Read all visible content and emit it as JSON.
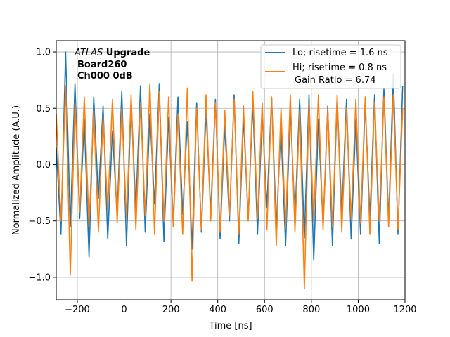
{
  "chart_data": {
    "type": "line",
    "title": "",
    "xlabel": "Time [ns]",
    "ylabel": "Normalized Amplitude (A.U.)",
    "xlim": [
      -290,
      1200
    ],
    "ylim": [
      -1.2,
      1.1
    ],
    "xticks": [
      -200,
      0,
      200,
      400,
      600,
      800,
      1000,
      1200
    ],
    "yticks": [
      -1.0,
      -0.5,
      0.0,
      0.5,
      1.0
    ],
    "xtick_labels": [
      "−200",
      "0",
      "200",
      "400",
      "600",
      "800",
      "1000",
      "1200"
    ],
    "ytick_labels": [
      "−1.0",
      "−0.5",
      "0.0",
      "0.5",
      "1.0"
    ],
    "grid": true,
    "legend_position": "top-right",
    "annotation": {
      "italic": "ATLAS",
      "bold_suffix": " Upgrade",
      "line2": "Board260",
      "line3": "Ch000 0dB"
    },
    "series": [
      {
        "name": "Lo; risetime = 1.6 ns",
        "color": "#1f77b4",
        "x": [
          -290,
          -270,
          -250,
          -230,
          -210,
          -190,
          -170,
          -150,
          -130,
          -110,
          -90,
          -70,
          -50,
          -30,
          -10,
          10,
          30,
          50,
          70,
          90,
          110,
          130,
          150,
          170,
          190,
          210,
          230,
          250,
          270,
          290,
          310,
          330,
          350,
          370,
          390,
          410,
          430,
          450,
          470,
          490,
          510,
          530,
          550,
          570,
          590,
          610,
          630,
          650,
          670,
          690,
          710,
          730,
          750,
          770,
          790,
          810,
          830,
          850,
          870,
          890,
          910,
          930,
          950,
          970,
          990,
          1010,
          1030,
          1050,
          1070,
          1090,
          1110,
          1130,
          1150,
          1170,
          1190
        ],
        "y": [
          0.15,
          -0.62,
          1.0,
          -0.55,
          0.72,
          -0.48,
          0.4,
          -0.82,
          0.6,
          -0.3,
          0.52,
          -0.66,
          0.3,
          -0.45,
          0.65,
          -0.72,
          0.58,
          -0.4,
          0.7,
          -0.6,
          0.45,
          -0.35,
          0.72,
          -0.68,
          0.42,
          -0.52,
          0.6,
          -0.44,
          0.38,
          -0.75,
          0.55,
          -0.6,
          0.48,
          -0.42,
          0.58,
          -0.66,
          0.35,
          -0.5,
          0.62,
          -0.7,
          0.42,
          -0.48,
          0.55,
          -0.62,
          0.45,
          -0.38,
          0.6,
          -0.55,
          0.32,
          -0.72,
          0.5,
          -0.48,
          0.58,
          -0.65,
          0.62,
          -0.85,
          0.4,
          -0.55,
          0.52,
          -0.72,
          0.6,
          -0.45,
          0.58,
          -0.66,
          0.4,
          -0.62,
          0.55,
          -0.48,
          0.62,
          -0.7,
          0.68,
          -0.5,
          0.8,
          -0.62,
          0.7
        ]
      },
      {
        "name": "Hi; risetime = 0.8 ns",
        "color": "#ff7f0e",
        "x": [
          -290,
          -270,
          -250,
          -230,
          -210,
          -190,
          -170,
          -150,
          -130,
          -110,
          -90,
          -70,
          -50,
          -30,
          -10,
          10,
          30,
          50,
          70,
          90,
          110,
          130,
          150,
          170,
          190,
          210,
          230,
          250,
          270,
          290,
          310,
          330,
          350,
          370,
          390,
          410,
          430,
          450,
          470,
          490,
          510,
          530,
          550,
          570,
          590,
          610,
          630,
          650,
          670,
          690,
          710,
          730,
          750,
          770,
          790,
          810,
          830,
          850,
          870,
          890,
          910,
          930,
          950,
          970,
          990,
          1010,
          1030,
          1050,
          1070,
          1090,
          1110,
          1130,
          1150,
          1170,
          1190
        ],
        "y": [
          0.45,
          -0.5,
          0.7,
          -0.98,
          0.55,
          -0.42,
          0.6,
          -0.55,
          0.48,
          -0.6,
          0.42,
          -0.4,
          0.58,
          -0.52,
          0.5,
          -0.48,
          0.62,
          -0.58,
          0.55,
          -0.45,
          0.72,
          -0.62,
          0.65,
          -0.5,
          0.6,
          -0.55,
          0.45,
          -0.62,
          0.68,
          -1.03,
          0.5,
          -0.58,
          0.62,
          -0.5,
          0.55,
          -0.6,
          0.48,
          -0.45,
          0.58,
          -0.62,
          0.52,
          -0.5,
          0.65,
          -0.48,
          0.55,
          -0.58,
          0.6,
          -0.72,
          0.5,
          -0.55,
          0.62,
          -0.6,
          0.48,
          -1.1,
          0.55,
          -0.5,
          0.62,
          -0.58,
          0.5,
          -0.55,
          0.62,
          -0.6,
          0.5,
          -0.48,
          0.58,
          -0.52,
          0.6,
          -0.62,
          0.55,
          -0.5,
          0.6,
          -0.55,
          0.62,
          -0.58,
          0.5
        ]
      }
    ],
    "legend_extra": "Gain Ratio = 6.74"
  }
}
